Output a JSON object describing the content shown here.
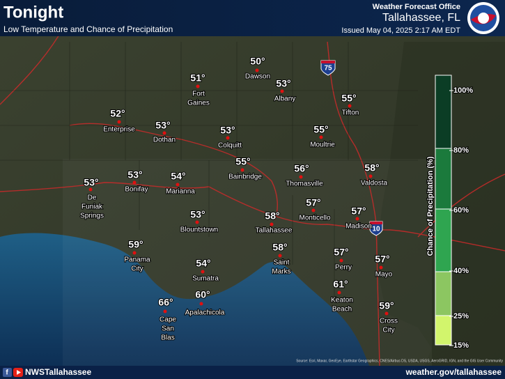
{
  "header": {
    "title": "Tonight",
    "subtitle": "Low Temperature and Chance of Precipitation",
    "office": "Weather Forecast Office",
    "location": "Tallahassee, FL",
    "issued": "Issued May 04, 2025 2:17 AM EDT"
  },
  "shields": [
    "75",
    "10"
  ],
  "cities": [
    {
      "temp": "50°",
      "name": [
        "Dawson"
      ]
    },
    {
      "temp": "51°",
      "name": [
        "Fort",
        "Gaines"
      ]
    },
    {
      "temp": "53°",
      "name": [
        "Albany"
      ]
    },
    {
      "temp": "55°",
      "name": [
        "Tifton"
      ]
    },
    {
      "temp": "52°",
      "name": [
        "Enterprise"
      ]
    },
    {
      "temp": "53°",
      "name": [
        "Dothan"
      ]
    },
    {
      "temp": "53°",
      "name": [
        "Colquitt"
      ]
    },
    {
      "temp": "55°",
      "name": [
        "Moultrie"
      ]
    },
    {
      "temp": "55°",
      "name": [
        "Bainbridge"
      ]
    },
    {
      "temp": "56°",
      "name": [
        "Thomasville"
      ]
    },
    {
      "temp": "58°",
      "name": [
        "Valdosta"
      ]
    },
    {
      "temp": "53°",
      "name": [
        "De",
        "Funiak",
        "Springs"
      ]
    },
    {
      "temp": "53°",
      "name": [
        "Bonifay"
      ]
    },
    {
      "temp": "54°",
      "name": [
        "Marianna"
      ]
    },
    {
      "temp": "53°",
      "name": [
        "Blountstown"
      ]
    },
    {
      "temp": "58°",
      "name": [
        "Tallahassee"
      ]
    },
    {
      "temp": "57°",
      "name": [
        "Monticello"
      ]
    },
    {
      "temp": "57°",
      "name": [
        "Madison"
      ]
    },
    {
      "temp": "59°",
      "name": [
        "Panama",
        "City"
      ]
    },
    {
      "temp": "58°",
      "name": [
        "Saint",
        "Marks"
      ]
    },
    {
      "temp": "57°",
      "name": [
        "Perry"
      ]
    },
    {
      "temp": "57°",
      "name": [
        "Mayo"
      ]
    },
    {
      "temp": "54°",
      "name": [
        "Sumatra"
      ]
    },
    {
      "temp": "61°",
      "name": [
        "Keaton",
        "Beach"
      ]
    },
    {
      "temp": "60°",
      "name": [
        "Apalachicola"
      ]
    },
    {
      "temp": "66°",
      "name": [
        "Cape",
        "San",
        "Blas"
      ]
    },
    {
      "temp": "59°",
      "name": [
        "Cross",
        "City"
      ]
    }
  ],
  "legend": {
    "label": "Chance of Precipitation (%)",
    "ticks": [
      "100%",
      "80%",
      "60%",
      "40%",
      "25%",
      "15%"
    ]
  },
  "source": "Source: Esri, Maxar, GeoEye, Earthstar Geographics, CNES/Airbus DS, USDA, USGS, AeroGRID, IGN, and the GIS User Community",
  "footer": {
    "social": "NWSTallahassee",
    "url": "weather.gov/tallahassee"
  }
}
